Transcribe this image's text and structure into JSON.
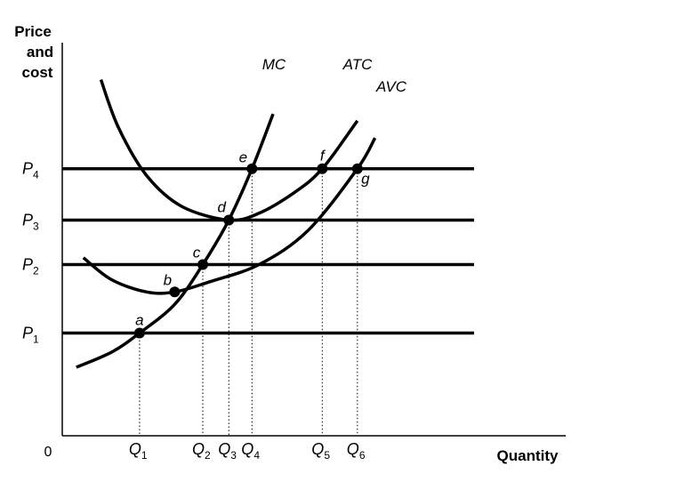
{
  "chart_data": {
    "type": "line",
    "title": "",
    "ylabel": [
      "Price",
      "and",
      "cost"
    ],
    "xlabel": "Quantity",
    "origin": "0",
    "grid": false,
    "prices": [
      {
        "label": "P",
        "sub": "1",
        "value": 1.5
      },
      {
        "label": "P",
        "sub": "2",
        "value": 2.5
      },
      {
        "label": "P",
        "sub": "3",
        "value": 3.15
      },
      {
        "label": "P",
        "sub": "4",
        "value": 3.9
      }
    ],
    "quantities": [
      {
        "label": "Q",
        "sub": "1",
        "value": 1.1
      },
      {
        "label": "Q",
        "sub": "2",
        "value": 2.0
      },
      {
        "label": "Q",
        "sub": "3",
        "value": 2.37
      },
      {
        "label": "Q",
        "sub": "4",
        "value": 2.7
      },
      {
        "label": "Q",
        "sub": "5",
        "value": 3.7
      },
      {
        "label": "Q",
        "sub": "6",
        "value": 4.2
      }
    ],
    "series": [
      {
        "name": "MC",
        "points": [
          [
            0.2,
            1.0
          ],
          [
            0.7,
            1.22
          ],
          [
            1.1,
            1.5
          ],
          [
            1.6,
            1.92
          ],
          [
            2.0,
            2.5
          ],
          [
            2.37,
            3.15
          ],
          [
            2.7,
            3.9
          ],
          [
            3.0,
            4.7
          ]
        ]
      },
      {
        "name": "ATC",
        "points": [
          [
            0.55,
            5.2
          ],
          [
            0.8,
            4.5
          ],
          [
            1.2,
            3.8
          ],
          [
            1.7,
            3.35
          ],
          [
            2.37,
            3.15
          ],
          [
            2.8,
            3.25
          ],
          [
            3.3,
            3.55
          ],
          [
            3.7,
            3.9
          ],
          [
            4.2,
            4.6
          ]
        ]
      },
      {
        "name": "AVC",
        "points": [
          [
            0.3,
            2.6
          ],
          [
            0.7,
            2.28
          ],
          [
            1.2,
            2.1
          ],
          [
            1.6,
            2.1
          ],
          [
            2.1,
            2.25
          ],
          [
            2.8,
            2.5
          ],
          [
            3.5,
            3.0
          ],
          [
            4.2,
            3.9
          ],
          [
            4.45,
            4.35
          ]
        ]
      }
    ],
    "points": [
      {
        "label": "a",
        "x": 1.1,
        "y": 1.5
      },
      {
        "label": "b",
        "x": 1.6,
        "y": 2.1
      },
      {
        "label": "c",
        "x": 2.0,
        "y": 2.5
      },
      {
        "label": "d",
        "x": 2.37,
        "y": 3.15
      },
      {
        "label": "e",
        "x": 2.7,
        "y": 3.9
      },
      {
        "label": "f",
        "x": 3.7,
        "y": 3.9
      },
      {
        "label": "g",
        "x": 4.2,
        "y": 3.9
      }
    ],
    "xlim": [
      0,
      7.2
    ],
    "ylim": [
      0,
      6.0
    ]
  }
}
